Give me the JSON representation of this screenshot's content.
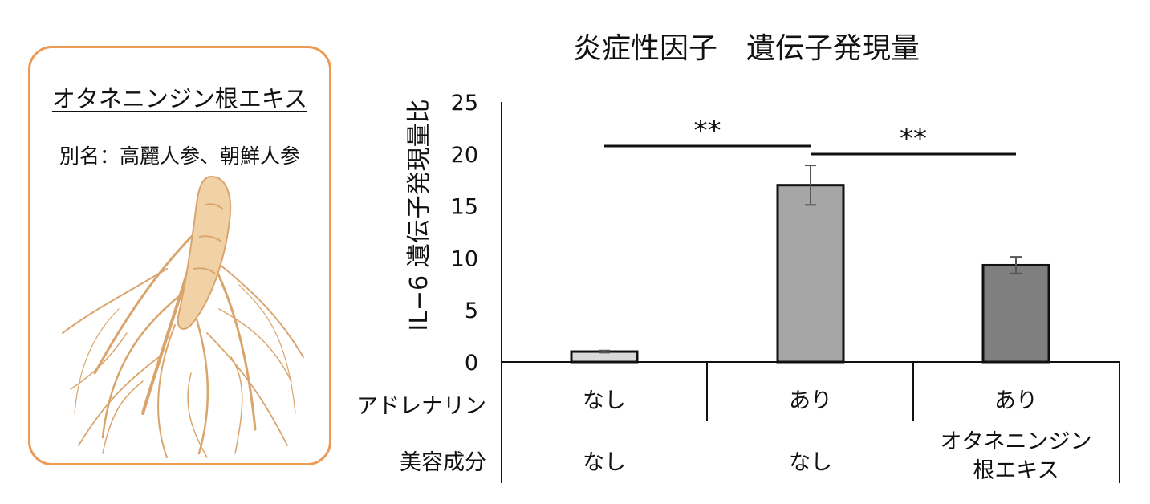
{
  "card": {
    "title": "オタネニンジン根エキス",
    "subtitle": "別名：高麗人参、朝鮮人参",
    "image": "ginseng-root-illustration",
    "border_color": "#ED9A55"
  },
  "chart_data": {
    "type": "bar",
    "title": "炎症性因子　遺伝子発現量",
    "ylabel": "IL−6 遺伝子発現量比",
    "ylim": [
      0,
      25
    ],
    "yticks": [
      "0",
      "5",
      "10",
      "15",
      "20",
      "25"
    ],
    "values": [
      1.0,
      17.0,
      9.3
    ],
    "errors": [
      0.1,
      1.9,
      0.8
    ],
    "colors": [
      "#D9D9D9",
      "#A6A6A6",
      "#7F7F7F"
    ],
    "grid": false,
    "legend": "none",
    "significance": [
      {
        "between": [
          1,
          2
        ],
        "label": "**"
      },
      {
        "between": [
          2,
          3
        ],
        "label": "**"
      }
    ],
    "row_labels": [
      "アドレナリン",
      "美容成分"
    ],
    "conditions": [
      {
        "adrenaline": "なし",
        "ingredient": [
          "なし"
        ]
      },
      {
        "adrenaline": "あり",
        "ingredient": [
          "なし"
        ]
      },
      {
        "adrenaline": "あり",
        "ingredient": [
          "オタネニンジン",
          "根エキス"
        ]
      }
    ]
  }
}
